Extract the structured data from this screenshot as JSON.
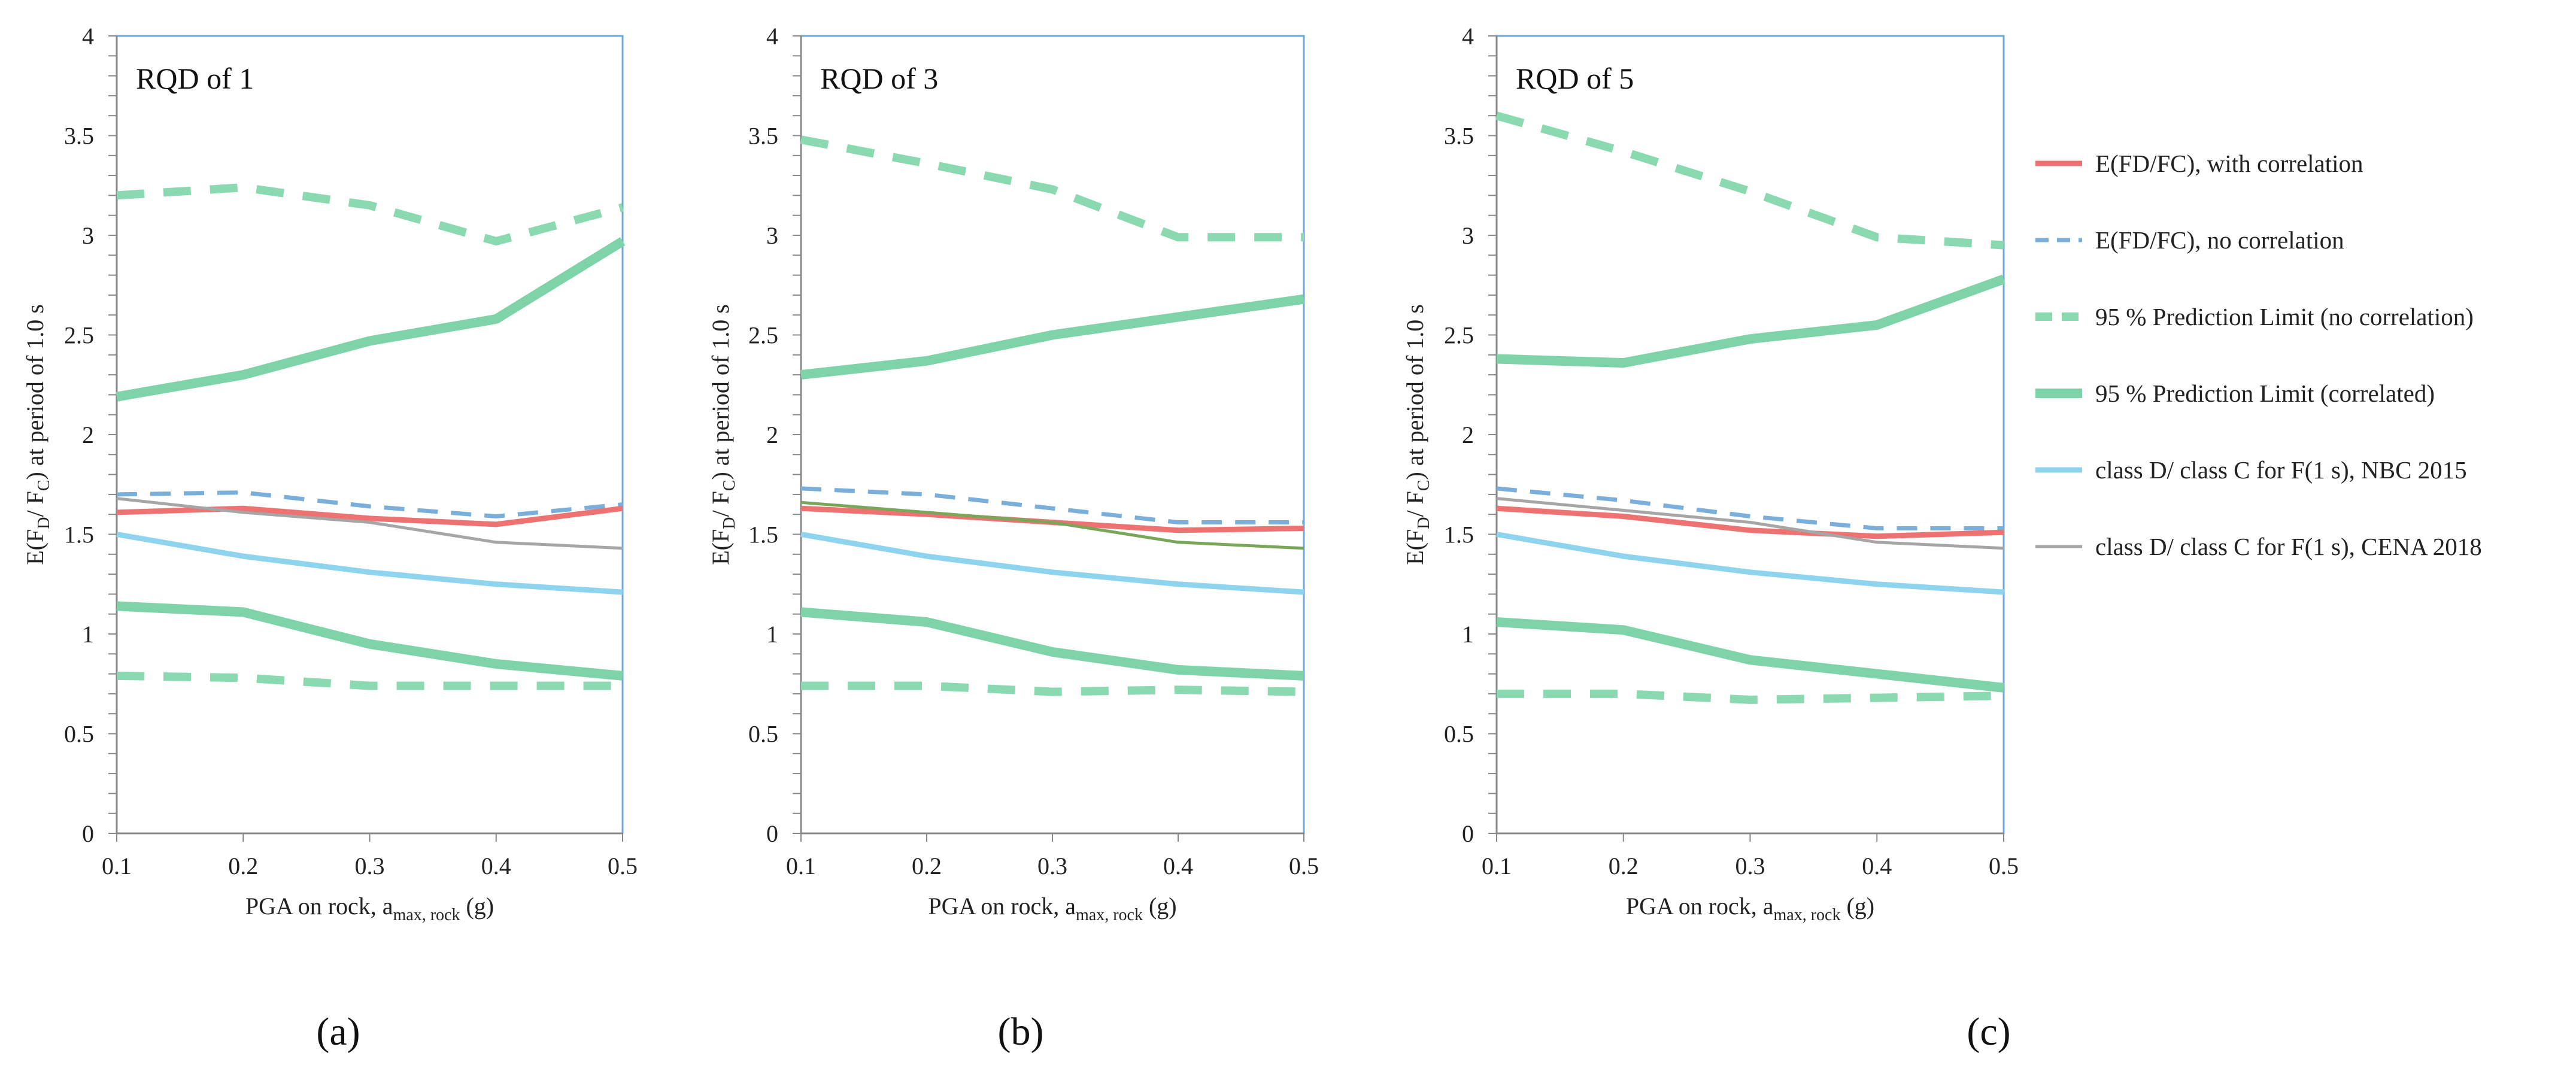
{
  "series_styles": [
    {
      "key": "exp_corr",
      "color": "#ee7272",
      "width": 9,
      "dash": ""
    },
    {
      "key": "exp_nocorr",
      "color": "#7aaedb",
      "width": 7,
      "dash": "34,22"
    },
    {
      "key": "pl_nocorr",
      "color": "#8ad9b0",
      "width": 14,
      "dash": "46,32"
    },
    {
      "key": "pl_corr",
      "color": "#7fd3a8",
      "width": 16,
      "dash": ""
    },
    {
      "key": "nbc",
      "color": "#8fd4ef",
      "width": 9,
      "dash": ""
    },
    {
      "key": "cena",
      "color": "#a6a6a6",
      "width": 5,
      "dash": ""
    }
  ],
  "legend": [
    {
      "key": "exp_corr",
      "label": "E(FD/FC), with correlation"
    },
    {
      "key": "exp_nocorr",
      "label": "E(FD/FC), no correlation"
    },
    {
      "key": "pl_nocorr",
      "label": "95 % Prediction Limit (no correlation)"
    },
    {
      "key": "pl_corr",
      "label": "95 % Prediction Limit (correlated)"
    },
    {
      "key": "nbc",
      "label": "class D/ class C for F(1 s), NBC 2015"
    },
    {
      "key": "cena",
      "label": "class D/ class C for F(1 s), CENA 2018"
    }
  ],
  "axis_titles": {
    "y_main": "E(F",
    "y_sub1": "D",
    "y_mid": "/ F",
    "y_sub2": "C",
    "y_end": ") at period of 1.0 s",
    "x_main": "PGA on rock, a",
    "x_sub": "max, rock",
    "x_end": " (g)"
  },
  "chart_data": [
    {
      "type": "line",
      "title": "RQD of 1",
      "panel_label": "(a)",
      "x": [
        0.1,
        0.2,
        0.3,
        0.4,
        0.5
      ],
      "x_ticks": [
        "0.1",
        "0.2",
        "0.3",
        "0.4",
        "0.5"
      ],
      "y_ticks": [
        "0",
        "0.5",
        "1",
        "1.5",
        "2",
        "2.5",
        "3",
        "3.5",
        "4"
      ],
      "xlim": [
        0.1,
        0.5
      ],
      "ylim": [
        0,
        4
      ],
      "series": [
        {
          "key": "pl_nocorr",
          "values": [
            3.2,
            3.24,
            3.15,
            2.97,
            3.14
          ]
        },
        {
          "key": "pl_corr",
          "values": [
            2.19,
            2.3,
            2.47,
            2.58,
            2.97
          ]
        },
        {
          "key": "exp_nocorr",
          "values": [
            1.7,
            1.71,
            1.64,
            1.59,
            1.65
          ]
        },
        {
          "key": "exp_corr",
          "values": [
            1.61,
            1.63,
            1.58,
            1.55,
            1.63
          ]
        },
        {
          "key": "cena",
          "values": [
            1.68,
            1.61,
            1.56,
            1.46,
            1.43
          ]
        },
        {
          "key": "nbc",
          "values": [
            1.5,
            1.39,
            1.31,
            1.25,
            1.21
          ]
        },
        {
          "key": "pl_corr",
          "values": [
            1.14,
            1.11,
            0.95,
            0.85,
            0.79
          ]
        },
        {
          "key": "pl_nocorr",
          "values": [
            0.79,
            0.78,
            0.74,
            0.74,
            0.74
          ]
        }
      ]
    },
    {
      "type": "line",
      "title": "RQD of 3",
      "panel_label": "(b)",
      "x": [
        0.1,
        0.2,
        0.3,
        0.4,
        0.5
      ],
      "x_ticks": [
        "0.1",
        "0.2",
        "0.3",
        "0.4",
        "0.5"
      ],
      "y_ticks": [
        "0",
        "0.5",
        "1",
        "1.5",
        "2",
        "2.5",
        "3",
        "3.5",
        "4"
      ],
      "xlim": [
        0.1,
        0.5
      ],
      "ylim": [
        0,
        4
      ],
      "series": [
        {
          "key": "pl_nocorr",
          "values": [
            3.48,
            3.36,
            3.23,
            2.99,
            2.99
          ]
        },
        {
          "key": "pl_corr",
          "values": [
            2.3,
            2.37,
            2.5,
            2.59,
            2.68
          ]
        },
        {
          "key": "exp_nocorr",
          "values": [
            1.73,
            1.7,
            1.63,
            1.56,
            1.56
          ]
        },
        {
          "key": "exp_corr",
          "values": [
            1.63,
            1.6,
            1.56,
            1.52,
            1.53
          ]
        },
        {
          "key": "cena",
          "values": [
            1.66,
            1.61,
            1.56,
            1.46,
            1.43
          ],
          "color": "#7aa65a"
        },
        {
          "key": "nbc",
          "values": [
            1.5,
            1.39,
            1.31,
            1.25,
            1.21
          ]
        },
        {
          "key": "pl_corr",
          "values": [
            1.11,
            1.06,
            0.91,
            0.82,
            0.79
          ]
        },
        {
          "key": "pl_nocorr",
          "values": [
            0.74,
            0.74,
            0.71,
            0.72,
            0.71
          ]
        }
      ]
    },
    {
      "type": "line",
      "title": "RQD of 5",
      "panel_label": "(c)",
      "x": [
        0.1,
        0.2,
        0.3,
        0.4,
        0.5
      ],
      "x_ticks": [
        "0.1",
        "0.2",
        "0.3",
        "0.4",
        "0.5"
      ],
      "y_ticks": [
        "0",
        "0.5",
        "1",
        "1.5",
        "2",
        "2.5",
        "3",
        "3.5",
        "4"
      ],
      "xlim": [
        0.1,
        0.5
      ],
      "ylim": [
        0,
        4
      ],
      "series": [
        {
          "key": "pl_nocorr",
          "values": [
            3.6,
            3.42,
            3.22,
            2.99,
            2.95
          ]
        },
        {
          "key": "pl_corr",
          "values": [
            2.38,
            2.36,
            2.48,
            2.55,
            2.78
          ]
        },
        {
          "key": "exp_nocorr",
          "values": [
            1.73,
            1.67,
            1.59,
            1.53,
            1.53
          ]
        },
        {
          "key": "exp_corr",
          "values": [
            1.63,
            1.59,
            1.52,
            1.49,
            1.51
          ]
        },
        {
          "key": "cena",
          "values": [
            1.68,
            1.62,
            1.56,
            1.46,
            1.43
          ]
        },
        {
          "key": "nbc",
          "values": [
            1.5,
            1.39,
            1.31,
            1.25,
            1.21
          ]
        },
        {
          "key": "pl_corr",
          "values": [
            1.06,
            1.02,
            0.87,
            0.8,
            0.73
          ]
        },
        {
          "key": "pl_nocorr",
          "values": [
            0.7,
            0.7,
            0.67,
            0.68,
            0.69
          ]
        }
      ]
    }
  ]
}
